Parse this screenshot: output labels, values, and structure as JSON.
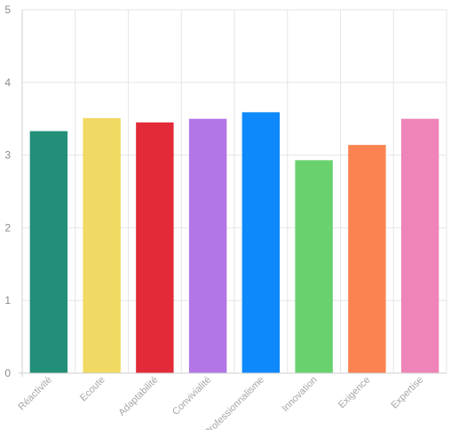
{
  "chart_data": {
    "type": "bar",
    "categories": [
      "Réactivité",
      "Ecoute",
      "Adaptabilité",
      "Convivialité",
      "Professionnalisme",
      "Innovation",
      "Exigence",
      "Expertise"
    ],
    "values": [
      3.33,
      3.51,
      3.45,
      3.5,
      3.59,
      2.93,
      3.14,
      3.5
    ],
    "colors": [
      "#228f78",
      "#f0da63",
      "#e22a38",
      "#b276e6",
      "#0d89fb",
      "#69d26f",
      "#fa8351",
      "#ef84b9"
    ],
    "ylim": [
      0,
      5
    ],
    "yticks": [
      0,
      1,
      2,
      3,
      4,
      5
    ],
    "title": "",
    "xlabel": "",
    "ylabel": "",
    "grid": true,
    "legend": "none"
  }
}
